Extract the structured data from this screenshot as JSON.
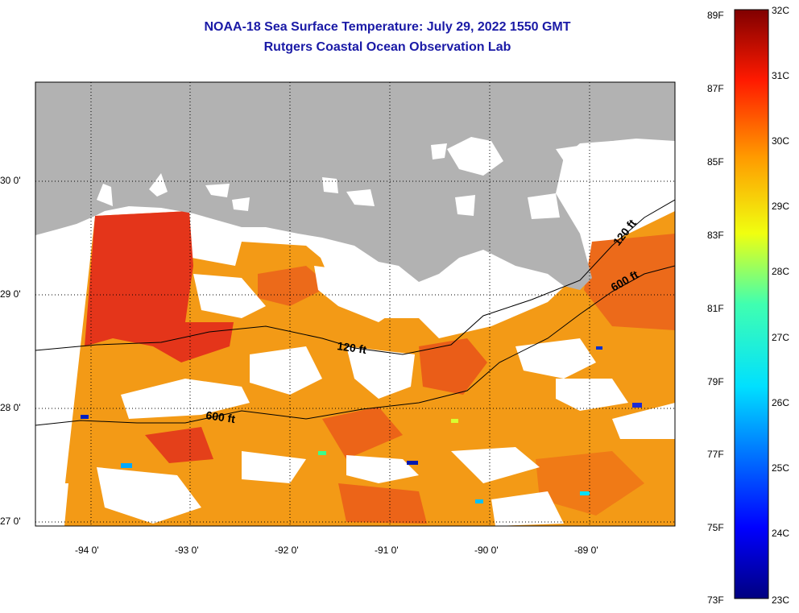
{
  "header": {
    "title": "NOAA-18 Sea Surface Temperature:  July 29, 2022 1550 GMT",
    "subtitle": "Rutgers Coastal Ocean Observation Lab"
  },
  "map": {
    "lat_labels": [
      "30 0'",
      "29 0'",
      "28 0'",
      "27 0'"
    ],
    "lon_labels": [
      "-94 0'",
      "-93 0'",
      "-92 0'",
      "-91 0'",
      "-90 0'",
      "-89 0'"
    ],
    "isobaths": [
      {
        "label": "120 ft"
      },
      {
        "label": "120 ft"
      },
      {
        "label": "600 ft"
      },
      {
        "label": "600 ft"
      }
    ]
  },
  "colorbar": {
    "fahrenheit": [
      "89F",
      "87F",
      "85F",
      "83F",
      "81F",
      "79F",
      "77F",
      "75F",
      "73F"
    ],
    "celsius": [
      "32C",
      "31C",
      "30C",
      "29C",
      "28C",
      "27C",
      "26C",
      "25C",
      "24C",
      "23C"
    ]
  },
  "colors": {
    "title": "#1a1aa6",
    "land": "#b2b2b2",
    "cloud": "#ffffff"
  }
}
